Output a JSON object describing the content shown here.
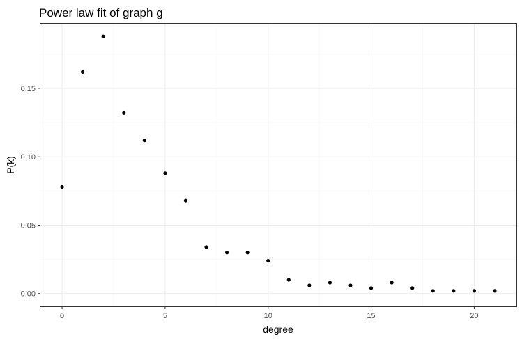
{
  "chart_data": {
    "type": "scatter",
    "title": "Power law fit of graph g",
    "xlabel": "degree",
    "ylabel": "P(k)",
    "xlim": [
      -1.05,
      22.05
    ],
    "ylim": [
      -0.0093,
      0.1973
    ],
    "x_ticks": [
      0,
      5,
      10,
      15,
      20
    ],
    "x_tick_labels": [
      "0",
      "5",
      "10",
      "15",
      "20"
    ],
    "y_ticks": [
      0.0,
      0.05,
      0.1,
      0.15
    ],
    "y_tick_labels": [
      "0.00",
      "0.05",
      "0.10",
      "0.15"
    ],
    "grid": true,
    "point_color": "#000000",
    "points": [
      {
        "x": 0,
        "y": 0.078
      },
      {
        "x": 1,
        "y": 0.162
      },
      {
        "x": 2,
        "y": 0.188
      },
      {
        "x": 3,
        "y": 0.132
      },
      {
        "x": 4,
        "y": 0.112
      },
      {
        "x": 5,
        "y": 0.088
      },
      {
        "x": 6,
        "y": 0.068
      },
      {
        "x": 7,
        "y": 0.034
      },
      {
        "x": 8,
        "y": 0.03
      },
      {
        "x": 9,
        "y": 0.03
      },
      {
        "x": 10,
        "y": 0.024
      },
      {
        "x": 11,
        "y": 0.01
      },
      {
        "x": 12,
        "y": 0.006
      },
      {
        "x": 13,
        "y": 0.008
      },
      {
        "x": 14,
        "y": 0.006
      },
      {
        "x": 15,
        "y": 0.004
      },
      {
        "x": 16,
        "y": 0.008
      },
      {
        "x": 17,
        "y": 0.004
      },
      {
        "x": 18,
        "y": 0.002
      },
      {
        "x": 19,
        "y": 0.002
      },
      {
        "x": 20,
        "y": 0.002
      },
      {
        "x": 21,
        "y": 0.002
      }
    ]
  }
}
